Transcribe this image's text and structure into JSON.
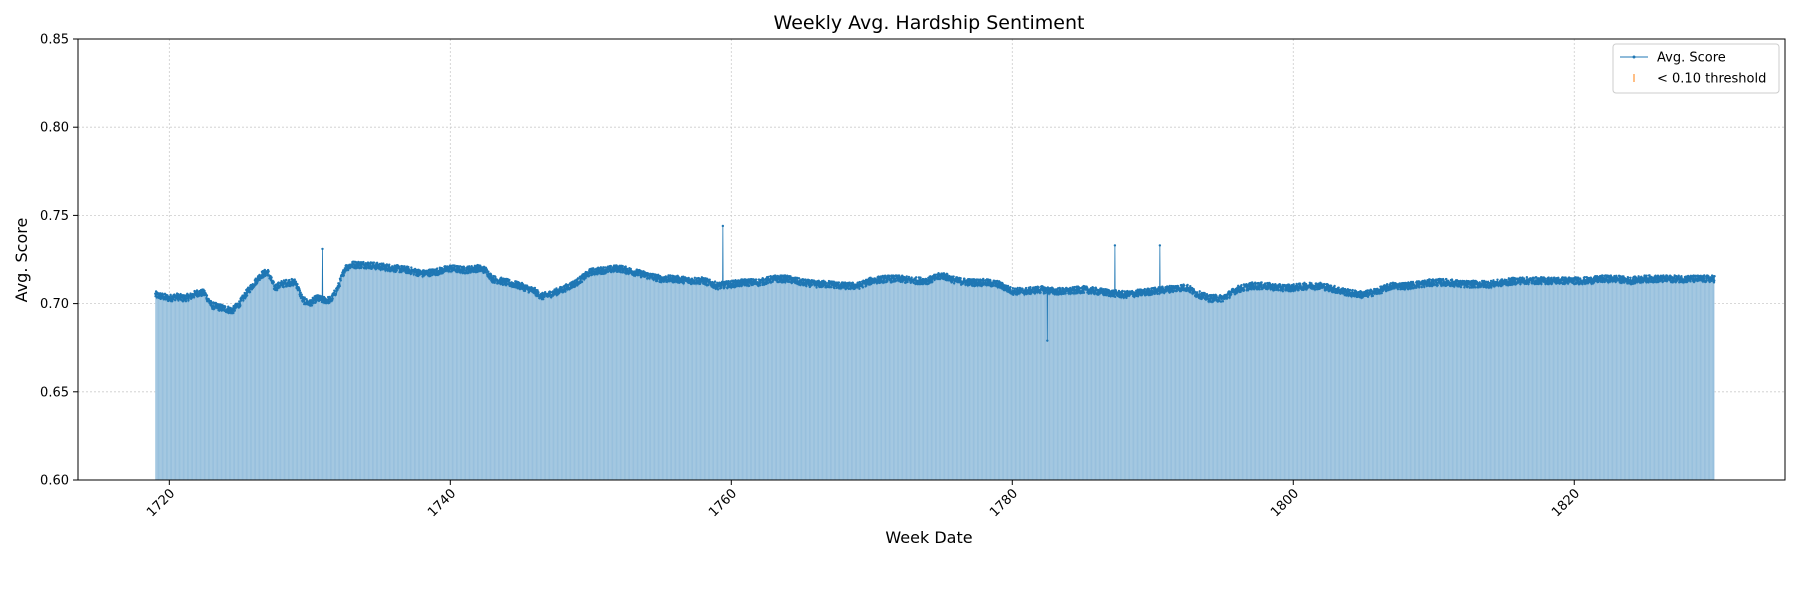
{
  "chart_data": {
    "type": "area",
    "title": "Weekly Avg. Hardship Sentiment",
    "xlabel": "Week Date",
    "ylabel": "Avg. Score",
    "xlim": [
      1713.5,
      1835.0
    ],
    "ylim": [
      0.6,
      0.85
    ],
    "x_ticks": [
      1720,
      1740,
      1760,
      1780,
      1800,
      1820
    ],
    "y_ticks": [
      "0.60",
      "0.65",
      "0.70",
      "0.75",
      "0.80",
      "0.85"
    ],
    "grid": true,
    "legend_position": "top-right",
    "legend": [
      "Avg. Score",
      "< 0.10 threshold"
    ],
    "colors": {
      "series": "#1f77b4",
      "fill": "#7bafd4",
      "threshold": "#ff7f0e"
    },
    "series": [
      {
        "name": "Avg. Score",
        "x_start": 1719.0,
        "x_end": 1830.0,
        "keypoints": [
          [
            1719.0,
            0.705
          ],
          [
            1719.5,
            0.704
          ],
          [
            1720.0,
            0.703
          ],
          [
            1720.5,
            0.704
          ],
          [
            1721.0,
            0.703
          ],
          [
            1721.5,
            0.704
          ],
          [
            1722.0,
            0.706
          ],
          [
            1722.5,
            0.706
          ],
          [
            1723.0,
            0.699
          ],
          [
            1723.5,
            0.698
          ],
          [
            1724.0,
            0.697
          ],
          [
            1724.5,
            0.696
          ],
          [
            1725.0,
            0.7
          ],
          [
            1725.5,
            0.706
          ],
          [
            1726.0,
            0.711
          ],
          [
            1726.5,
            0.716
          ],
          [
            1727.0,
            0.718
          ],
          [
            1727.5,
            0.709
          ],
          [
            1728.0,
            0.711
          ],
          [
            1728.5,
            0.712
          ],
          [
            1729.0,
            0.712
          ],
          [
            1729.5,
            0.702
          ],
          [
            1730.0,
            0.7
          ],
          [
            1730.5,
            0.703
          ],
          [
            1731.0,
            0.702
          ],
          [
            1731.5,
            0.702
          ],
          [
            1732.0,
            0.709
          ],
          [
            1732.5,
            0.72
          ],
          [
            1733.0,
            0.722
          ],
          [
            1734.0,
            0.722
          ],
          [
            1735.0,
            0.721
          ],
          [
            1736.0,
            0.72
          ],
          [
            1737.0,
            0.719
          ],
          [
            1738.0,
            0.717
          ],
          [
            1739.0,
            0.718
          ],
          [
            1740.0,
            0.72
          ],
          [
            1741.0,
            0.719
          ],
          [
            1742.0,
            0.72
          ],
          [
            1742.5,
            0.719
          ],
          [
            1743.0,
            0.714
          ],
          [
            1744.0,
            0.712
          ],
          [
            1745.0,
            0.71
          ],
          [
            1746.0,
            0.707
          ],
          [
            1746.5,
            0.704
          ],
          [
            1747.0,
            0.705
          ],
          [
            1748.0,
            0.708
          ],
          [
            1749.0,
            0.712
          ],
          [
            1750.0,
            0.718
          ],
          [
            1751.0,
            0.719
          ],
          [
            1752.0,
            0.72
          ],
          [
            1753.0,
            0.718
          ],
          [
            1754.0,
            0.716
          ],
          [
            1755.0,
            0.714
          ],
          [
            1756.0,
            0.714
          ],
          [
            1757.0,
            0.713
          ],
          [
            1758.0,
            0.713
          ],
          [
            1759.0,
            0.71
          ],
          [
            1760.0,
            0.711
          ],
          [
            1761.0,
            0.712
          ],
          [
            1762.0,
            0.712
          ],
          [
            1763.0,
            0.714
          ],
          [
            1764.0,
            0.714
          ],
          [
            1765.0,
            0.712
          ],
          [
            1766.0,
            0.711
          ],
          [
            1767.0,
            0.711
          ],
          [
            1768.0,
            0.71
          ],
          [
            1769.0,
            0.71
          ],
          [
            1770.0,
            0.713
          ],
          [
            1771.0,
            0.714
          ],
          [
            1772.0,
            0.714
          ],
          [
            1773.0,
            0.713
          ],
          [
            1774.0,
            0.713
          ],
          [
            1775.0,
            0.716
          ],
          [
            1776.0,
            0.713
          ],
          [
            1777.0,
            0.712
          ],
          [
            1778.0,
            0.712
          ],
          [
            1779.0,
            0.711
          ],
          [
            1780.0,
            0.707
          ],
          [
            1781.0,
            0.707
          ],
          [
            1782.0,
            0.708
          ],
          [
            1783.0,
            0.707
          ],
          [
            1784.0,
            0.707
          ],
          [
            1785.0,
            0.708
          ],
          [
            1786.0,
            0.707
          ],
          [
            1787.0,
            0.706
          ],
          [
            1788.0,
            0.705
          ],
          [
            1789.0,
            0.706
          ],
          [
            1790.0,
            0.707
          ],
          [
            1791.0,
            0.708
          ],
          [
            1792.0,
            0.709
          ],
          [
            1792.5,
            0.709
          ],
          [
            1793.0,
            0.706
          ],
          [
            1794.0,
            0.703
          ],
          [
            1795.0,
            0.703
          ],
          [
            1796.0,
            0.708
          ],
          [
            1797.0,
            0.71
          ],
          [
            1798.0,
            0.71
          ],
          [
            1799.0,
            0.709
          ],
          [
            1800.0,
            0.709
          ],
          [
            1801.0,
            0.71
          ],
          [
            1802.0,
            0.71
          ],
          [
            1803.0,
            0.708
          ],
          [
            1804.0,
            0.706
          ],
          [
            1805.0,
            0.705
          ],
          [
            1806.0,
            0.707
          ],
          [
            1807.0,
            0.71
          ],
          [
            1808.0,
            0.71
          ],
          [
            1809.0,
            0.711
          ],
          [
            1810.0,
            0.712
          ],
          [
            1811.0,
            0.712
          ],
          [
            1812.0,
            0.711
          ],
          [
            1813.0,
            0.711
          ],
          [
            1814.0,
            0.711
          ],
          [
            1815.0,
            0.712
          ],
          [
            1816.0,
            0.713
          ],
          [
            1817.0,
            0.713
          ],
          [
            1818.0,
            0.713
          ],
          [
            1819.0,
            0.713
          ],
          [
            1820.0,
            0.713
          ],
          [
            1821.0,
            0.713
          ],
          [
            1822.0,
            0.714
          ],
          [
            1823.0,
            0.714
          ],
          [
            1824.0,
            0.713
          ],
          [
            1825.0,
            0.714
          ],
          [
            1826.0,
            0.714
          ],
          [
            1827.0,
            0.714
          ],
          [
            1828.0,
            0.714
          ],
          [
            1829.0,
            0.714
          ],
          [
            1830.0,
            0.714
          ]
        ],
        "spikes": [
          [
            1730.9,
            0.731
          ],
          [
            1759.4,
            0.744
          ],
          [
            1782.5,
            0.679
          ],
          [
            1787.3,
            0.733
          ],
          [
            1790.5,
            0.733
          ]
        ]
      }
    ]
  }
}
